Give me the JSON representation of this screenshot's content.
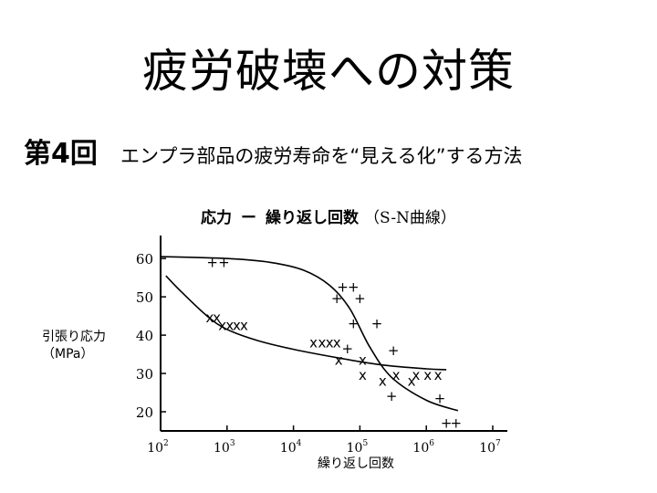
{
  "slide": {
    "title": "疲労破壊への対策",
    "lecture_no": "第4回",
    "subtitle": "エンプラ部品の疲労寿命を“見える化”する方法"
  },
  "chart_data": {
    "type": "scatter",
    "title": {
      "main": "応力",
      "dash": "ー",
      "bold2": "繰り返し回数",
      "paren": "（S-N曲線）"
    },
    "ylabel_lines": [
      "引張り応力",
      "（MPa）"
    ],
    "xlabel": "繰り返し回数",
    "x_scale": "log",
    "xlim": [
      100,
      10000000
    ],
    "ylim": [
      15,
      66
    ],
    "y_ticks": [
      20,
      30,
      40,
      50,
      60
    ],
    "y_tick_labels": [
      "20",
      "30",
      "40",
      "50",
      "60"
    ],
    "x_ticks": [
      {
        "base": "10",
        "exp": "2",
        "value": 100
      },
      {
        "base": "10",
        "exp": "3",
        "value": 1000
      },
      {
        "base": "10",
        "exp": "4",
        "value": 10000
      },
      {
        "base": "10",
        "exp": "5",
        "value": 100000
      },
      {
        "base": "10",
        "exp": "6",
        "value": 1000000
      },
      {
        "base": "10",
        "exp": "7",
        "value": 10000000
      }
    ],
    "grid": false,
    "series": [
      {
        "marker": "+",
        "points": [
          {
            "x": 600,
            "y": 59
          },
          {
            "x": 900,
            "y": 59
          },
          {
            "x": 45000,
            "y": 49.5
          },
          {
            "x": 55000,
            "y": 52.5
          },
          {
            "x": 80000,
            "y": 52.5
          },
          {
            "x": 100000,
            "y": 49.5
          },
          {
            "x": 80000,
            "y": 43
          },
          {
            "x": 180000,
            "y": 43
          },
          {
            "x": 65000,
            "y": 36.5
          },
          {
            "x": 320000,
            "y": 36
          },
          {
            "x": 300000,
            "y": 24
          },
          {
            "x": 1600000,
            "y": 23.5
          },
          {
            "x": 2000000,
            "y": 17
          },
          {
            "x": 2800000,
            "y": 17
          }
        ],
        "curve": [
          {
            "x": 100,
            "y": 60.5
          },
          {
            "x": 1000,
            "y": 60
          },
          {
            "x": 4500,
            "y": 59
          },
          {
            "x": 14000,
            "y": 57
          },
          {
            "x": 35000,
            "y": 53
          },
          {
            "x": 70000,
            "y": 47
          },
          {
            "x": 140000,
            "y": 37
          },
          {
            "x": 300000,
            "y": 29
          },
          {
            "x": 1000000,
            "y": 23
          },
          {
            "x": 3000000,
            "y": 20.3
          }
        ]
      },
      {
        "marker": "x",
        "points": [
          {
            "x": 550,
            "y": 44.5
          },
          {
            "x": 700,
            "y": 44.5
          },
          {
            "x": 850,
            "y": 42.5
          },
          {
            "x": 1100,
            "y": 42.5
          },
          {
            "x": 1400,
            "y": 42.5
          },
          {
            "x": 1800,
            "y": 42.5
          },
          {
            "x": 20000,
            "y": 38
          },
          {
            "x": 27000,
            "y": 38
          },
          {
            "x": 35000,
            "y": 38
          },
          {
            "x": 45000,
            "y": 38
          },
          {
            "x": 48000,
            "y": 33.5
          },
          {
            "x": 110000,
            "y": 33.5
          },
          {
            "x": 110000,
            "y": 29.5
          },
          {
            "x": 220000,
            "y": 28
          },
          {
            "x": 350000,
            "y": 29.5
          },
          {
            "x": 600000,
            "y": 28
          },
          {
            "x": 700000,
            "y": 29.5
          },
          {
            "x": 1050000,
            "y": 29.5
          },
          {
            "x": 1500000,
            "y": 29.5
          }
        ],
        "curve": [
          {
            "x": 120,
            "y": 55.5
          },
          {
            "x": 200,
            "y": 51.5
          },
          {
            "x": 500,
            "y": 45
          },
          {
            "x": 1000,
            "y": 41.5
          },
          {
            "x": 3000,
            "y": 38.5
          },
          {
            "x": 10000,
            "y": 36.3
          },
          {
            "x": 50000,
            "y": 34
          },
          {
            "x": 200000,
            "y": 32.3
          },
          {
            "x": 1000000,
            "y": 31.2
          },
          {
            "x": 2000000,
            "y": 31
          }
        ]
      }
    ]
  }
}
